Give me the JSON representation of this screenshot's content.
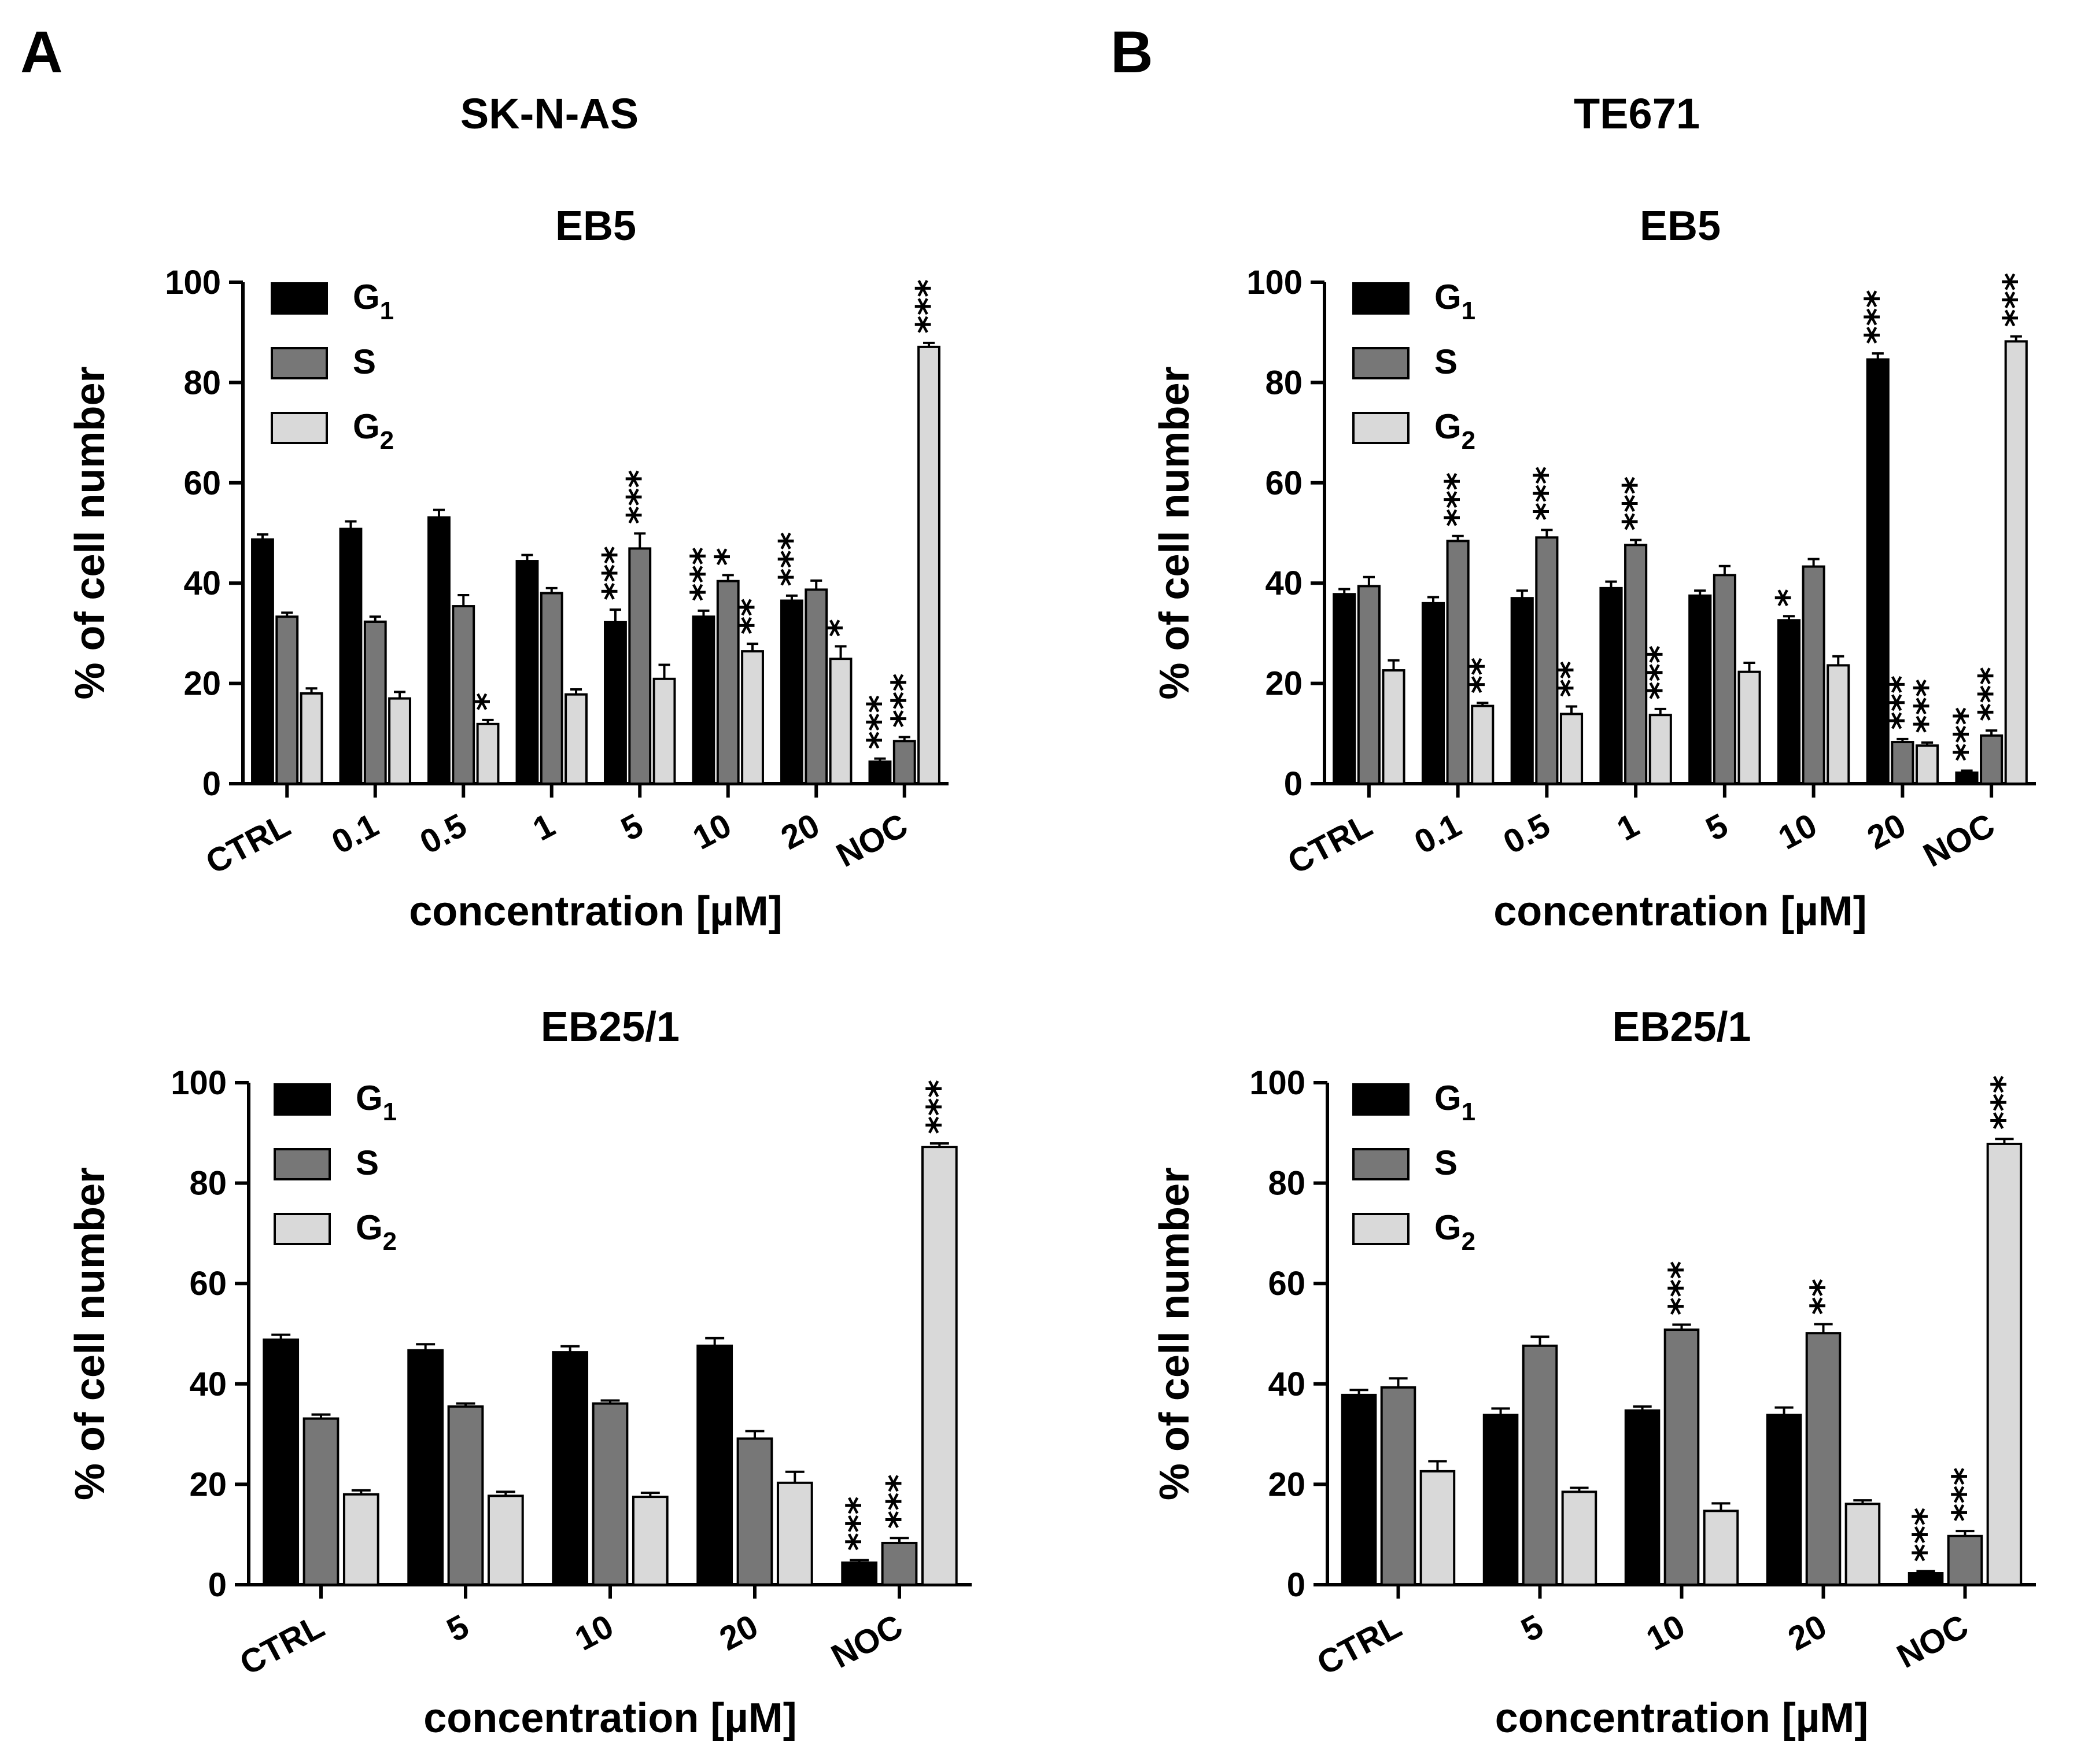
{
  "chart_data": [
    {
      "type": "bar",
      "panel": "A",
      "cell_line": "SK-N-AS",
      "title": "EB5",
      "categories": [
        "CTRL",
        "0.1",
        "0.5",
        "1",
        "5",
        "10",
        "20",
        "NOC"
      ],
      "xlabel": "concentration [µM]",
      "ylabel": "% of cell number",
      "ylim": [
        0,
        100
      ],
      "yticks": [
        0,
        20,
        40,
        60,
        80,
        100
      ],
      "legend": {
        "position": "top-left",
        "entries": [
          {
            "base": "G",
            "sub": "1"
          },
          {
            "base": "S",
            "sub": ""
          },
          {
            "base": "G",
            "sub": "2"
          }
        ]
      },
      "series": [
        {
          "name": "G1",
          "color": "#000000",
          "values": [
            48.7,
            50.8,
            53.1,
            44.4,
            32.2,
            33.3,
            36.5,
            4.4
          ],
          "errors": [
            1.0,
            1.5,
            1.5,
            1.2,
            2.5,
            1.2,
            1.0,
            0.6
          ],
          "sig": [
            "",
            "",
            "",
            "",
            "***",
            "***",
            "***",
            "***"
          ]
        },
        {
          "name": "S",
          "color": "#777777",
          "values": [
            33.3,
            32.3,
            35.4,
            38.0,
            46.9,
            40.4,
            38.7,
            8.5
          ],
          "errors": [
            0.8,
            1.0,
            2.2,
            1.0,
            3.0,
            1.2,
            1.8,
            0.8
          ],
          "sig": [
            "",
            "",
            "",
            "",
            "***",
            "*",
            "",
            "***"
          ]
        },
        {
          "name": "G2",
          "color": "#d9d9d9",
          "values": [
            18.0,
            17.0,
            11.9,
            17.8,
            20.9,
            26.4,
            24.9,
            87.1
          ],
          "errors": [
            1.0,
            1.3,
            0.8,
            1.0,
            2.8,
            1.5,
            2.5,
            0.8
          ],
          "sig": [
            "",
            "",
            "*",
            "",
            "",
            "**",
            "*",
            "***"
          ]
        }
      ]
    },
    {
      "type": "bar",
      "panel": "B",
      "cell_line": "TE671",
      "title": "EB5",
      "categories": [
        "CTRL",
        "0.1",
        "0.5",
        "1",
        "5",
        "10",
        "20",
        "NOC"
      ],
      "xlabel": "concentration [µM]",
      "ylabel": "% of cell number",
      "ylim": [
        0,
        100
      ],
      "yticks": [
        0,
        20,
        40,
        60,
        80,
        100
      ],
      "legend": {
        "position": "top-left",
        "entries": [
          {
            "base": "G",
            "sub": "1"
          },
          {
            "base": "S",
            "sub": ""
          },
          {
            "base": "G",
            "sub": "2"
          }
        ]
      },
      "series": [
        {
          "name": "G1",
          "color": "#000000",
          "values": [
            37.8,
            36.0,
            37.0,
            39.0,
            37.5,
            32.6,
            84.6,
            2.2
          ],
          "errors": [
            1.0,
            1.2,
            1.5,
            1.3,
            1.0,
            0.8,
            1.2,
            0.4
          ],
          "sig": [
            "",
            "",
            "",
            "",
            "",
            "*",
            "***",
            "***"
          ]
        },
        {
          "name": "S",
          "color": "#777777",
          "values": [
            39.4,
            48.4,
            49.1,
            47.6,
            41.6,
            43.3,
            8.3,
            9.6
          ],
          "errors": [
            1.8,
            1.0,
            1.5,
            1.0,
            1.8,
            1.5,
            0.6,
            1.0
          ],
          "sig": [
            "",
            "***",
            "***",
            "***",
            "",
            "",
            "***",
            "***"
          ]
        },
        {
          "name": "G2",
          "color": "#d9d9d9",
          "values": [
            22.6,
            15.5,
            13.9,
            13.7,
            22.3,
            23.6,
            7.6,
            88.2
          ],
          "errors": [
            2.0,
            0.6,
            1.5,
            1.2,
            1.8,
            1.8,
            0.6,
            1.0
          ],
          "sig": [
            "",
            "**",
            "**",
            "***",
            "",
            "",
            "***",
            "***"
          ]
        }
      ]
    },
    {
      "type": "bar",
      "panel": "A",
      "cell_line": "SK-N-AS",
      "title": "EB25/1",
      "categories": [
        "CTRL",
        "5",
        "10",
        "20",
        "NOC"
      ],
      "xlabel": "concentration [µM]",
      "ylabel": "% of cell number",
      "ylim": [
        0,
        100
      ],
      "yticks": [
        0,
        20,
        40,
        60,
        80,
        100
      ],
      "legend": {
        "position": "top-left",
        "entries": [
          {
            "base": "G",
            "sub": "1"
          },
          {
            "base": "S",
            "sub": ""
          },
          {
            "base": "G",
            "sub": "2"
          }
        ]
      },
      "series": [
        {
          "name": "G1",
          "color": "#000000",
          "values": [
            48.8,
            46.7,
            46.3,
            47.6,
            4.4
          ],
          "errors": [
            1.0,
            1.2,
            1.2,
            1.5,
            0.5
          ],
          "sig": [
            "",
            "",
            "",
            "",
            "***"
          ]
        },
        {
          "name": "S",
          "color": "#777777",
          "values": [
            33.1,
            35.5,
            36.1,
            29.1,
            8.3
          ],
          "errors": [
            0.8,
            0.6,
            0.6,
            1.5,
            1.0
          ],
          "sig": [
            "",
            "",
            "",
            "",
            "***"
          ]
        },
        {
          "name": "G2",
          "color": "#d9d9d9",
          "values": [
            18.0,
            17.7,
            17.5,
            20.3,
            87.2
          ],
          "errors": [
            0.8,
            0.8,
            0.8,
            2.2,
            0.7
          ],
          "sig": [
            "",
            "",
            "",
            "",
            "***"
          ]
        }
      ]
    },
    {
      "type": "bar",
      "panel": "B",
      "cell_line": "TE671",
      "title": "EB25/1",
      "categories": [
        "CTRL",
        "5",
        "10",
        "20",
        "NOC"
      ],
      "xlabel": "concentration [µM]",
      "ylabel": "% of cell number",
      "ylim": [
        0,
        100
      ],
      "yticks": [
        0,
        20,
        40,
        60,
        80,
        100
      ],
      "legend": {
        "position": "top-left",
        "entries": [
          {
            "base": "G",
            "sub": "1"
          },
          {
            "base": "S",
            "sub": ""
          },
          {
            "base": "G",
            "sub": "2"
          }
        ]
      },
      "series": [
        {
          "name": "G1",
          "color": "#000000",
          "values": [
            37.8,
            33.8,
            34.7,
            33.8,
            2.3
          ],
          "errors": [
            1.0,
            1.3,
            0.8,
            1.5,
            0.4
          ],
          "sig": [
            "",
            "",
            "",
            "",
            "***"
          ]
        },
        {
          "name": "S",
          "color": "#777777",
          "values": [
            39.3,
            47.6,
            50.8,
            50.1,
            9.7
          ],
          "errors": [
            1.8,
            1.8,
            1.0,
            1.8,
            1.0
          ],
          "sig": [
            "",
            "",
            "***",
            "**",
            "***"
          ]
        },
        {
          "name": "G2",
          "color": "#d9d9d9",
          "values": [
            22.6,
            18.5,
            14.7,
            16.1,
            87.8
          ],
          "errors": [
            2.0,
            0.8,
            1.5,
            0.7,
            1.0
          ],
          "sig": [
            "",
            "",
            "",
            "",
            "***"
          ]
        }
      ]
    }
  ],
  "labels": {
    "panel_a": "A",
    "panel_b": "B",
    "cell_line_a": "SK-N-AS",
    "cell_line_b": "TE671"
  }
}
